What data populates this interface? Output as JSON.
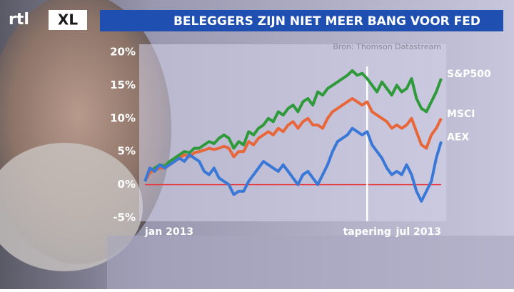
{
  "logo": {
    "brand": "rtl",
    "product": "XL"
  },
  "chart_data": {
    "type": "line",
    "title": "BELEGGERS ZIJN NIET MEER BANG VOOR FED",
    "source": "Bron: Thomson Datastream",
    "categories": [
      "jan 2013",
      null,
      null,
      null,
      null,
      null,
      null,
      null,
      null,
      null,
      null,
      null,
      null,
      null,
      null,
      null,
      null,
      null,
      null,
      null,
      null,
      null,
      null,
      null,
      null,
      null,
      null,
      null,
      null,
      null,
      null,
      null,
      null,
      null,
      null,
      null,
      null,
      null,
      null,
      null,
      null,
      null,
      null,
      null,
      null,
      "tapering",
      null,
      null,
      null,
      null,
      null,
      null,
      null,
      null,
      null,
      null,
      null,
      null,
      null,
      null,
      "jul 2013"
    ],
    "ylim": [
      -5,
      20
    ],
    "yticks": [
      {
        "value": -5,
        "label": "-5%"
      },
      {
        "value": 0,
        "label": "0%"
      },
      {
        "value": 5,
        "label": "5%"
      },
      {
        "value": 10,
        "label": "10%"
      },
      {
        "value": 15,
        "label": "15%"
      },
      {
        "value": 20,
        "label": "20%"
      }
    ],
    "hline": {
      "y": 0,
      "color": "#e8383d"
    },
    "vline": {
      "x": 45,
      "color": "#ffffff"
    },
    "series": [
      {
        "name": "S&P500",
        "color": "#2e9a3a",
        "values": [
          0.5,
          2,
          2.5,
          3,
          2.8,
          3.5,
          4,
          4.5,
          5,
          4.8,
          5.5,
          5.5,
          6,
          6.5,
          6.2,
          7,
          7.5,
          7,
          5.5,
          6.5,
          6,
          8,
          7.5,
          8.5,
          9,
          10,
          9.5,
          11,
          10.5,
          11.5,
          12,
          11,
          12.5,
          13,
          12,
          14,
          13.5,
          14.5,
          15,
          15.5,
          16,
          16.5,
          17.2,
          16.5,
          16.8,
          16,
          15,
          14,
          15.5,
          14.5,
          13.5,
          15,
          14,
          14.5,
          16,
          13,
          11.5,
          11,
          12.5,
          14,
          16
        ]
      },
      {
        "name": "MSCI",
        "color": "#e8673a",
        "values": [
          0.5,
          1.8,
          2.2,
          2.5,
          2.5,
          3,
          3.5,
          4,
          4.5,
          4.2,
          4.8,
          5,
          5.2,
          5.5,
          5.3,
          5.5,
          5.8,
          5.5,
          4.2,
          5,
          5,
          6.5,
          6,
          7,
          7.5,
          8,
          7.5,
          8.5,
          8,
          9,
          9.5,
          8.5,
          9.5,
          10,
          9,
          9,
          8.5,
          10,
          11,
          11.5,
          12,
          12.5,
          13,
          12.5,
          12,
          12.5,
          11,
          10.5,
          10,
          9.5,
          8.5,
          9,
          8.5,
          9,
          10,
          8,
          6,
          5.5,
          7.5,
          8.5,
          10
        ]
      },
      {
        "name": "AEX",
        "color": "#3a78d8",
        "values": [
          0.5,
          2.5,
          2,
          3,
          2.5,
          3,
          3.5,
          4,
          3.5,
          4.5,
          4,
          3.5,
          2,
          1.5,
          2.5,
          1,
          0.5,
          0,
          -1.5,
          -1,
          -1,
          0.5,
          1.5,
          2.5,
          3.5,
          3,
          2.5,
          2,
          3,
          2,
          1,
          0,
          1.5,
          2,
          1,
          0,
          1.5,
          3,
          5,
          6.5,
          7,
          7.5,
          8.5,
          8,
          7.5,
          8,
          6,
          5,
          4,
          2.5,
          1.5,
          2,
          1.5,
          3,
          1.5,
          -1,
          -2.5,
          -1,
          0.5,
          4,
          6.5
        ]
      }
    ]
  }
}
